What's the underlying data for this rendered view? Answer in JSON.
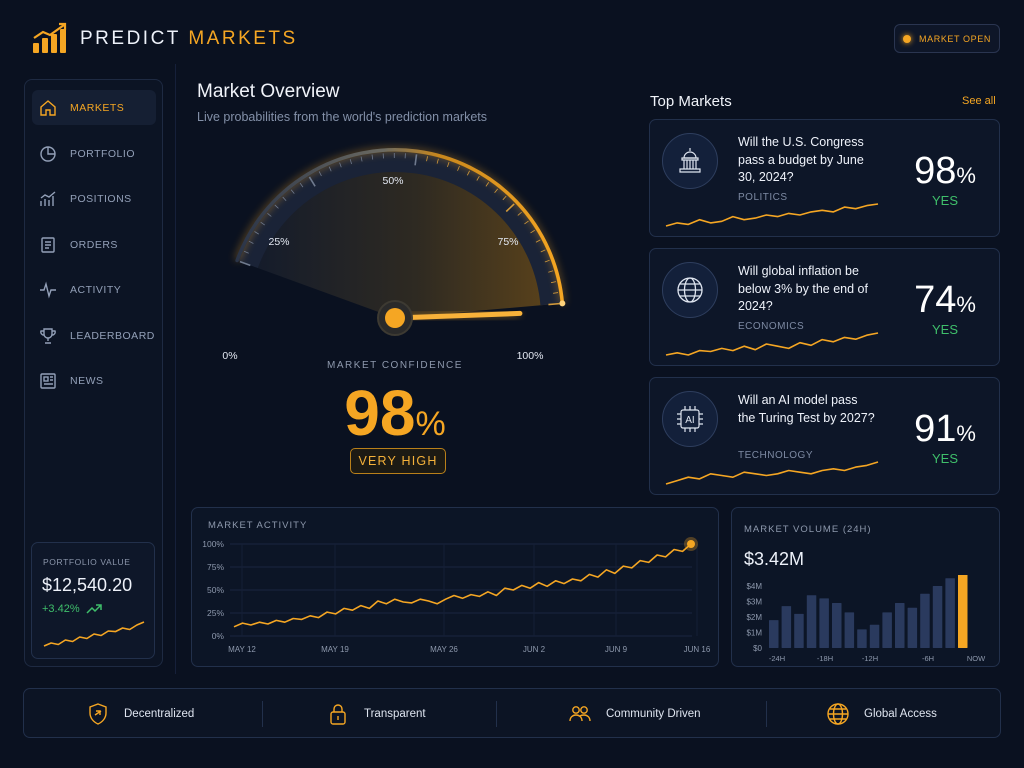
{
  "brand": {
    "word1": "PREDICT",
    "word2": "MARKETS"
  },
  "status": {
    "label": "MARKET OPEN"
  },
  "nav": [
    {
      "label": "MARKETS",
      "icon": "home-icon",
      "active": true
    },
    {
      "label": "PORTFOLIO",
      "icon": "pie-chart-icon"
    },
    {
      "label": "POSITIONS",
      "icon": "bar-chart-icon"
    },
    {
      "label": "ORDERS",
      "icon": "document-icon"
    },
    {
      "label": "ACTIVITY",
      "icon": "pulse-icon"
    },
    {
      "label": "LEADERBOARD",
      "icon": "trophy-icon"
    },
    {
      "label": "NEWS",
      "icon": "newspaper-icon"
    }
  ],
  "portfolio": {
    "label": "PORTFOLIO VALUE",
    "value": "$12,540.20",
    "change": "+3.42%",
    "trend": [
      3,
      4,
      3.5,
      5,
      4.5,
      6,
      5.5,
      7,
      6.5,
      8,
      7.8,
      9,
      8.5,
      10,
      11
    ]
  },
  "overview": {
    "title": "Market Overview",
    "subtitle": "Live probabilities from the world's prediction markets",
    "gauge_ticks": [
      "0%",
      "25%",
      "50%",
      "75%",
      "100%"
    ],
    "confidence_label": "MARKET CONFIDENCE",
    "confidence_value": "98",
    "confidence_unit": "%",
    "confidence_fraction": 0.98,
    "confidence_badge": "VERY HIGH"
  },
  "top_markets": {
    "title": "Top Markets",
    "see_all": "See all",
    "items": [
      {
        "question": "Will the U.S. Congress pass a budget by June 30, 2024?",
        "category": "POLITICS",
        "prob": "98",
        "unit": "%",
        "outcome": "YES",
        "icon": "capitol-icon",
        "spark": [
          4,
          5,
          4.5,
          6,
          5,
          5.5,
          7,
          6,
          6.5,
          7.5,
          7,
          8,
          7.5,
          8.5,
          9,
          8.5,
          10,
          9.5,
          10.5,
          11
        ]
      },
      {
        "question": "Will global inflation be below 3% by the end of 2024?",
        "category": "ECONOMICS",
        "prob": "74",
        "unit": "%",
        "outcome": "YES",
        "icon": "globe-icon",
        "spark": [
          5,
          5.5,
          5,
          6,
          5.8,
          6.5,
          6,
          7,
          6.2,
          7.5,
          7,
          6.5,
          7.8,
          7.2,
          8.5,
          8,
          9,
          8.6,
          9.5,
          10
        ]
      },
      {
        "question": "Will an AI model pass the Turing Test by 2027?",
        "category": "TECHNOLOGY",
        "prob": "91",
        "unit": "%",
        "outcome": "YES",
        "icon": "ai-chip-icon",
        "chip_text": "AI",
        "spark": [
          4,
          5,
          6,
          5.5,
          7,
          6.5,
          6,
          7.5,
          7,
          6.5,
          7,
          8,
          7.5,
          7,
          8,
          8.5,
          8,
          9,
          9.5,
          10.5
        ]
      }
    ]
  },
  "activity": {
    "title": "MARKET ACTIVITY",
    "chart_data": {
      "type": "line",
      "y_ticks": [
        "100%",
        "75%",
        "50%",
        "25%",
        "0%"
      ],
      "x_ticks": [
        "MAY 12",
        "MAY 19",
        "MAY 26",
        "JUN 2",
        "JUN 9",
        "JUN 16"
      ],
      "ylim": [
        0,
        100
      ],
      "values": [
        10,
        14,
        12,
        15,
        13,
        17,
        15,
        19,
        18,
        22,
        20,
        26,
        24,
        30,
        28,
        33,
        30,
        38,
        35,
        40,
        37,
        36,
        40,
        38,
        35,
        40,
        44,
        41,
        45,
        43,
        48,
        44,
        52,
        50,
        55,
        52,
        58,
        54,
        60,
        57,
        62,
        60,
        67,
        64,
        72,
        68,
        76,
        74,
        82,
        80,
        88,
        86,
        94,
        92,
        100
      ]
    }
  },
  "volume": {
    "title": "MARKET VOLUME (24H)",
    "value": "$3.42M",
    "chart_data": {
      "type": "bar",
      "y_ticks": [
        "$4M",
        "$3M",
        "$2M",
        "$1M",
        "$0"
      ],
      "x_ticks": [
        "-24H",
        "-18H",
        "-12H",
        "-6H",
        "NOW"
      ],
      "ylim": [
        0,
        4.5
      ],
      "values": [
        1.8,
        2.7,
        2.2,
        3.4,
        3.2,
        2.9,
        2.3,
        1.2,
        1.5,
        2.3,
        2.9,
        2.6,
        3.5,
        4.0,
        4.5,
        0
      ]
    }
  },
  "features": [
    {
      "label": "Decentralized",
      "icon": "shield-icon"
    },
    {
      "label": "Transparent",
      "icon": "lock-icon"
    },
    {
      "label": "Community Driven",
      "icon": "users-icon"
    },
    {
      "label": "Global Access",
      "icon": "globe-icon"
    }
  ],
  "colors": {
    "accent": "#f5a623",
    "positive": "#3fbf6b",
    "background": "#0a1120"
  }
}
